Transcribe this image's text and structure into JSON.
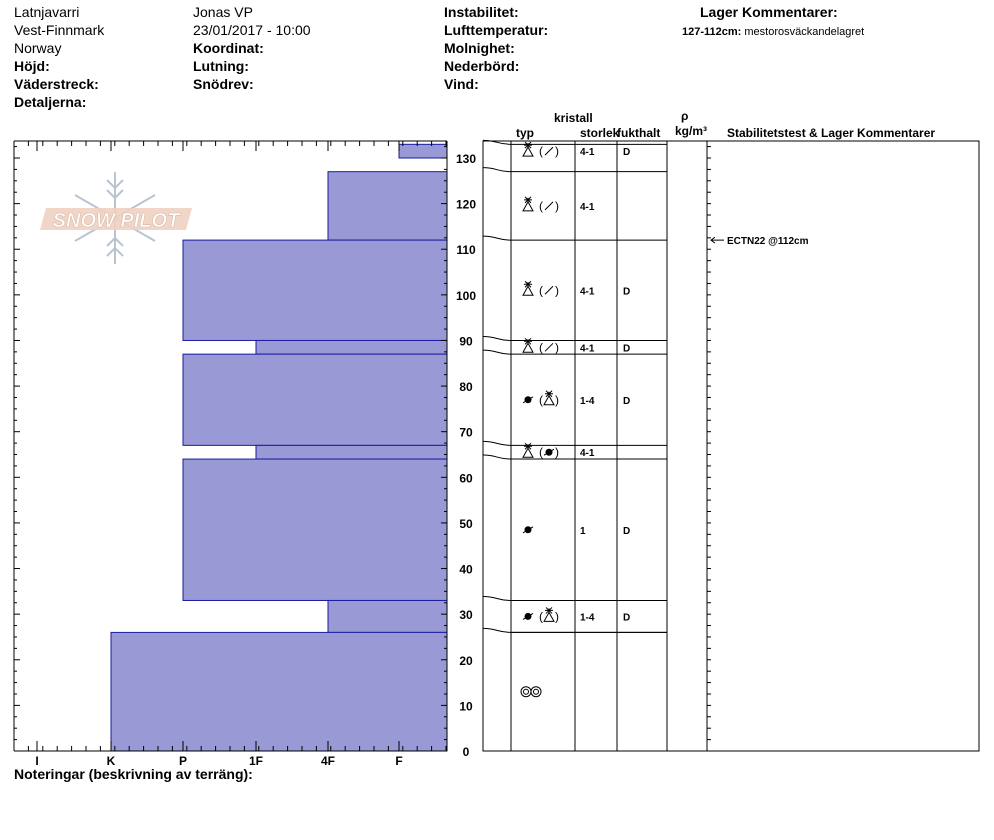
{
  "header": {
    "location": [
      "Latnjavarri",
      "Vest-Finnmark",
      "Norway"
    ],
    "observer": "Jonas VP",
    "datetime": "23/01/2017 - 10:00",
    "col1_labels": [
      "Höjd:",
      "Väderstreck:",
      "Detaljerna:"
    ],
    "col2_labels": [
      "Koordinat:",
      "Lutning:",
      "Snödrev:"
    ],
    "col3_labels": [
      "Instabilitet:",
      "Lufttemperatur:",
      "Molnighet:",
      "Nederbörd:",
      "Vind:"
    ],
    "layer_comments_title": "Lager Kommentarer:",
    "layer_comment_range": "127-112cm:",
    "layer_comment_text": "mestorosväckandelagret"
  },
  "logo_text": "SNOW PILOT",
  "table_headers": {
    "crystal": "kristall",
    "type": "typ",
    "size": "storlek",
    "moisture": "fukthalt",
    "density_symbol": "ρ",
    "density_unit": "kg/m³",
    "stability": "Stabilitetstest & Lager Kommentarer"
  },
  "stability_test": "ECTN22 @112cm",
  "footer_notes": "Noteringar (beskrivning av terräng):",
  "colors": {
    "hardness_fill": "#9999d6",
    "hardness_stroke": "#1a1aa0"
  },
  "chart_data": {
    "type": "bar",
    "orientation": "horizontal",
    "x_categories": [
      "I",
      "K",
      "P",
      "1F",
      "4F",
      "F"
    ],
    "xlabel": "",
    "ylabel": "",
    "ylim": [
      0,
      135
    ],
    "yticks": [
      0,
      10,
      20,
      30,
      40,
      50,
      60,
      70,
      80,
      90,
      100,
      110,
      120,
      130
    ],
    "hardness_layers": [
      {
        "bottom": 130,
        "top": 133,
        "hardness": "F"
      },
      {
        "bottom": 112,
        "top": 127,
        "hardness": "4F"
      },
      {
        "bottom": 90,
        "top": 112,
        "hardness": "P"
      },
      {
        "bottom": 87,
        "top": 90,
        "hardness": "1F"
      },
      {
        "bottom": 67,
        "top": 87,
        "hardness": "P"
      },
      {
        "bottom": 64,
        "top": 67,
        "hardness": "1F"
      },
      {
        "bottom": 33,
        "top": 64,
        "hardness": "P"
      },
      {
        "bottom": 26,
        "top": 33,
        "hardness": "4F"
      },
      {
        "bottom": 0,
        "top": 26,
        "hardness": "K"
      }
    ],
    "layer_table": [
      {
        "bottom": 130,
        "top": 133,
        "symbols": [
          "fc",
          "df"
        ],
        "size": "4-1",
        "moisture": "D"
      },
      {
        "bottom": 112,
        "top": 127,
        "symbols": [
          "fc",
          "df"
        ],
        "size": "4-1",
        "moisture": ""
      },
      {
        "bottom": 90,
        "top": 112,
        "symbols": [
          "fc",
          "df"
        ],
        "size": "4-1",
        "moisture": "D"
      },
      {
        "bottom": 87,
        "top": 90,
        "symbols": [
          "fc",
          "df"
        ],
        "size": "4-1",
        "moisture": "D"
      },
      {
        "bottom": 67,
        "top": 87,
        "symbols": [
          "rg",
          "fc"
        ],
        "size": "1-4",
        "moisture": "D"
      },
      {
        "bottom": 64,
        "top": 67,
        "symbols": [
          "fc",
          "rg"
        ],
        "size": "4-1",
        "moisture": ""
      },
      {
        "bottom": 33,
        "top": 64,
        "symbols": [
          "rg"
        ],
        "size": "1",
        "moisture": "D"
      },
      {
        "bottom": 26,
        "top": 33,
        "symbols": [
          "rg",
          "fc"
        ],
        "size": "1-4",
        "moisture": "D"
      },
      {
        "bottom": 0,
        "top": 26,
        "symbols": [
          "mf"
        ],
        "size": "",
        "moisture": ""
      }
    ]
  }
}
